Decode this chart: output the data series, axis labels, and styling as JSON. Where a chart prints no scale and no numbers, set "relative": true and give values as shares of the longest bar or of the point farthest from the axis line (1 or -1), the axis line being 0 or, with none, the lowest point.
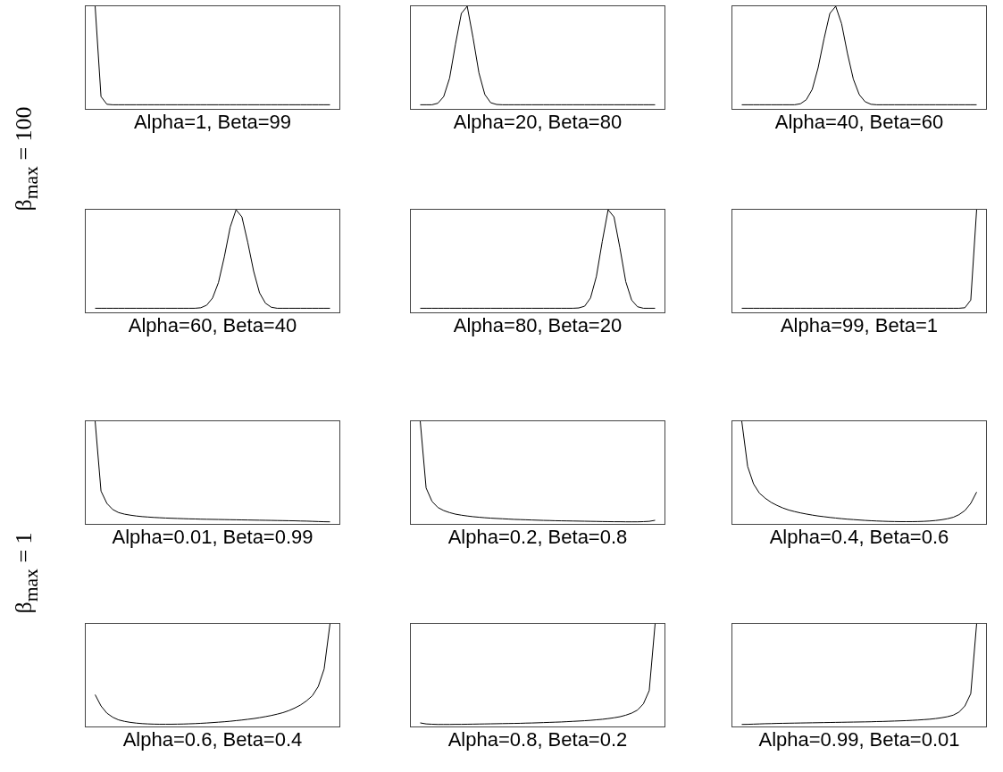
{
  "chart_data": [
    {
      "type": "line",
      "relative": true,
      "color": "#000000",
      "ylabel": "β$_{max}$ = 100",
      "xlabel": "Alpha=1, Beta=99",
      "categories": [
        null,
        null,
        null,
        null,
        null,
        null,
        null,
        null,
        null,
        null,
        null,
        null,
        null,
        null,
        null,
        null,
        null,
        null,
        null,
        null,
        null,
        null,
        null,
        null,
        null,
        null,
        null,
        null,
        null,
        null,
        null,
        null,
        null,
        null,
        null,
        null,
        null,
        null,
        null,
        null,
        null
      ],
      "values": [
        1,
        0.12,
        0.045,
        0.04,
        0.04,
        0.04,
        0.04,
        0.04,
        0.04,
        0.04,
        0.04,
        0.04,
        0.04,
        0.04,
        0.04,
        0.04,
        0.04,
        0.04,
        0.04,
        0.04,
        0.04,
        0.04,
        0.04,
        0.04,
        0.04,
        0.04,
        0.04,
        0.04,
        0.04,
        0.04,
        0.04,
        0.04,
        0.04,
        0.04,
        0.04,
        0.04,
        0.04,
        0.04,
        0.04,
        0.04,
        0.04
      ]
    },
    {
      "type": "line",
      "relative": true,
      "color": "#000000",
      "xlabel": "Alpha=20, Beta=80",
      "categories": [
        null,
        null,
        null,
        null,
        null,
        null,
        null,
        null,
        null,
        null,
        null,
        null,
        null,
        null,
        null,
        null,
        null,
        null,
        null,
        null,
        null,
        null,
        null,
        null,
        null,
        null,
        null,
        null,
        null,
        null,
        null,
        null,
        null,
        null,
        null,
        null,
        null,
        null,
        null,
        null,
        null
      ],
      "values": [
        0.04,
        0.04,
        0.04,
        0.055,
        0.12,
        0.3,
        0.63,
        0.93,
        1,
        0.69,
        0.35,
        0.14,
        0.06,
        0.043,
        0.04,
        0.04,
        0.04,
        0.04,
        0.04,
        0.04,
        0.04,
        0.04,
        0.04,
        0.04,
        0.04,
        0.04,
        0.04,
        0.04,
        0.04,
        0.04,
        0.04,
        0.04,
        0.04,
        0.04,
        0.04,
        0.04,
        0.04,
        0.04,
        0.04,
        0.04,
        0.04
      ]
    },
    {
      "type": "line",
      "relative": true,
      "color": "#000000",
      "xlabel": "Alpha=40, Beta=60",
      "categories": [
        null,
        null,
        null,
        null,
        null,
        null,
        null,
        null,
        null,
        null,
        null,
        null,
        null,
        null,
        null,
        null,
        null,
        null,
        null,
        null,
        null,
        null,
        null,
        null,
        null,
        null,
        null,
        null,
        null,
        null,
        null,
        null,
        null,
        null,
        null,
        null,
        null,
        null,
        null,
        null,
        null
      ],
      "values": [
        0.04,
        0.04,
        0.04,
        0.04,
        0.04,
        0.04,
        0.04,
        0.04,
        0.04,
        0.04,
        0.05,
        0.09,
        0.19,
        0.4,
        0.68,
        0.93,
        1,
        0.83,
        0.54,
        0.29,
        0.14,
        0.07,
        0.045,
        0.04,
        0.04,
        0.04,
        0.04,
        0.04,
        0.04,
        0.04,
        0.04,
        0.04,
        0.04,
        0.04,
        0.04,
        0.04,
        0.04,
        0.04,
        0.04,
        0.04,
        0.04
      ]
    },
    {
      "type": "line",
      "relative": true,
      "color": "#000000",
      "xlabel": "Alpha=60, Beta=40",
      "categories": [
        null,
        null,
        null,
        null,
        null,
        null,
        null,
        null,
        null,
        null,
        null,
        null,
        null,
        null,
        null,
        null,
        null,
        null,
        null,
        null,
        null,
        null,
        null,
        null,
        null,
        null,
        null,
        null,
        null,
        null,
        null,
        null,
        null,
        null,
        null,
        null,
        null,
        null,
        null,
        null,
        null
      ],
      "values": [
        0.04,
        0.04,
        0.04,
        0.04,
        0.04,
        0.04,
        0.04,
        0.04,
        0.04,
        0.04,
        0.04,
        0.04,
        0.04,
        0.04,
        0.04,
        0.04,
        0.04,
        0.04,
        0.045,
        0.07,
        0.14,
        0.29,
        0.54,
        0.83,
        1,
        0.93,
        0.68,
        0.4,
        0.19,
        0.09,
        0.05,
        0.04,
        0.04,
        0.04,
        0.04,
        0.04,
        0.04,
        0.04,
        0.04,
        0.04,
        0.04
      ]
    },
    {
      "type": "line",
      "relative": true,
      "color": "#000000",
      "xlabel": "Alpha=80, Beta=20",
      "categories": [
        null,
        null,
        null,
        null,
        null,
        null,
        null,
        null,
        null,
        null,
        null,
        null,
        null,
        null,
        null,
        null,
        null,
        null,
        null,
        null,
        null,
        null,
        null,
        null,
        null,
        null,
        null,
        null,
        null,
        null,
        null,
        null,
        null,
        null,
        null,
        null,
        null,
        null,
        null,
        null,
        null
      ],
      "values": [
        0.04,
        0.04,
        0.04,
        0.04,
        0.04,
        0.04,
        0.04,
        0.04,
        0.04,
        0.04,
        0.04,
        0.04,
        0.04,
        0.04,
        0.04,
        0.04,
        0.04,
        0.04,
        0.04,
        0.04,
        0.04,
        0.04,
        0.04,
        0.04,
        0.04,
        0.04,
        0.04,
        0.043,
        0.06,
        0.14,
        0.35,
        0.69,
        1,
        0.93,
        0.63,
        0.3,
        0.12,
        0.055,
        0.04,
        0.04,
        0.04
      ]
    },
    {
      "type": "line",
      "relative": true,
      "color": "#000000",
      "xlabel": "Alpha=99, Beta=1",
      "categories": [
        null,
        null,
        null,
        null,
        null,
        null,
        null,
        null,
        null,
        null,
        null,
        null,
        null,
        null,
        null,
        null,
        null,
        null,
        null,
        null,
        null,
        null,
        null,
        null,
        null,
        null,
        null,
        null,
        null,
        null,
        null,
        null,
        null,
        null,
        null,
        null,
        null,
        null,
        null,
        null,
        null
      ],
      "values": [
        0.04,
        0.04,
        0.04,
        0.04,
        0.04,
        0.04,
        0.04,
        0.04,
        0.04,
        0.04,
        0.04,
        0.04,
        0.04,
        0.04,
        0.04,
        0.04,
        0.04,
        0.04,
        0.04,
        0.04,
        0.04,
        0.04,
        0.04,
        0.04,
        0.04,
        0.04,
        0.04,
        0.04,
        0.04,
        0.04,
        0.04,
        0.04,
        0.04,
        0.04,
        0.04,
        0.04,
        0.04,
        0.04,
        0.045,
        0.12,
        1
      ]
    },
    {
      "type": "line",
      "relative": true,
      "color": "#000000",
      "ylabel": "β$_{max}$ = 1",
      "xlabel": "Alpha=0.01, Beta=0.99",
      "categories": [
        null,
        null,
        null,
        null,
        null,
        null,
        null,
        null,
        null,
        null,
        null,
        null,
        null,
        null,
        null,
        null,
        null,
        null,
        null,
        null,
        null,
        null,
        null,
        null,
        null,
        null,
        null,
        null,
        null,
        null,
        null,
        null,
        null,
        null,
        null,
        null,
        null,
        null,
        null,
        null,
        null
      ],
      "values": [
        1,
        0.32,
        0.2,
        0.14,
        0.11,
        0.095,
        0.085,
        0.077,
        0.071,
        0.067,
        0.063,
        0.06,
        0.057,
        0.055,
        0.053,
        0.051,
        0.049,
        0.048,
        0.046,
        0.045,
        0.044,
        0.043,
        0.042,
        0.041,
        0.04,
        0.039,
        0.038,
        0.037,
        0.036,
        0.035,
        0.034,
        0.033,
        0.032,
        0.031,
        0.03,
        0.028,
        0.027,
        0.025,
        0.023,
        0.021,
        0.02
      ]
    },
    {
      "type": "line",
      "relative": true,
      "color": "#000000",
      "xlabel": "Alpha=0.2, Beta=0.8",
      "categories": [
        null,
        null,
        null,
        null,
        null,
        null,
        null,
        null,
        null,
        null,
        null,
        null,
        null,
        null,
        null,
        null,
        null,
        null,
        null,
        null,
        null,
        null,
        null,
        null,
        null,
        null,
        null,
        null,
        null,
        null,
        null,
        null,
        null,
        null,
        null,
        null,
        null,
        null,
        null,
        null,
        null
      ],
      "values": [
        1,
        0.35,
        0.22,
        0.16,
        0.13,
        0.11,
        0.095,
        0.085,
        0.077,
        0.07,
        0.065,
        0.06,
        0.056,
        0.053,
        0.05,
        0.047,
        0.044,
        0.042,
        0.04,
        0.038,
        0.036,
        0.034,
        0.033,
        0.031,
        0.03,
        0.029,
        0.028,
        0.027,
        0.026,
        0.025,
        0.024,
        0.023,
        0.022,
        0.021,
        0.021,
        0.02,
        0.02,
        0.02,
        0.022,
        0.025,
        0.035
      ]
    },
    {
      "type": "line",
      "relative": true,
      "color": "#000000",
      "xlabel": "Alpha=0.4, Beta=0.6",
      "categories": [
        null,
        null,
        null,
        null,
        null,
        null,
        null,
        null,
        null,
        null,
        null,
        null,
        null,
        null,
        null,
        null,
        null,
        null,
        null,
        null,
        null,
        null,
        null,
        null,
        null,
        null,
        null,
        null,
        null,
        null,
        null,
        null,
        null,
        null,
        null,
        null,
        null,
        null,
        null,
        null,
        null
      ],
      "values": [
        1,
        0.56,
        0.39,
        0.3,
        0.25,
        0.21,
        0.18,
        0.155,
        0.135,
        0.12,
        0.107,
        0.096,
        0.086,
        0.077,
        0.07,
        0.063,
        0.057,
        0.051,
        0.046,
        0.042,
        0.038,
        0.034,
        0.031,
        0.028,
        0.026,
        0.024,
        0.023,
        0.022,
        0.022,
        0.022,
        0.023,
        0.025,
        0.028,
        0.033,
        0.04,
        0.05,
        0.064,
        0.09,
        0.13,
        0.2,
        0.31
      ]
    },
    {
      "type": "line",
      "relative": true,
      "color": "#000000",
      "xlabel": "Alpha=0.6, Beta=0.4",
      "categories": [
        null,
        null,
        null,
        null,
        null,
        null,
        null,
        null,
        null,
        null,
        null,
        null,
        null,
        null,
        null,
        null,
        null,
        null,
        null,
        null,
        null,
        null,
        null,
        null,
        null,
        null,
        null,
        null,
        null,
        null,
        null,
        null,
        null,
        null,
        null,
        null,
        null,
        null,
        null,
        null,
        null
      ],
      "values": [
        0.31,
        0.2,
        0.13,
        0.09,
        0.064,
        0.05,
        0.04,
        0.033,
        0.028,
        0.025,
        0.023,
        0.022,
        0.022,
        0.022,
        0.023,
        0.024,
        0.026,
        0.028,
        0.031,
        0.034,
        0.038,
        0.042,
        0.046,
        0.051,
        0.057,
        0.063,
        0.07,
        0.077,
        0.086,
        0.096,
        0.107,
        0.12,
        0.135,
        0.155,
        0.18,
        0.21,
        0.25,
        0.3,
        0.39,
        0.56,
        1
      ]
    },
    {
      "type": "line",
      "relative": true,
      "color": "#000000",
      "xlabel": "Alpha=0.8, Beta=0.2",
      "categories": [
        null,
        null,
        null,
        null,
        null,
        null,
        null,
        null,
        null,
        null,
        null,
        null,
        null,
        null,
        null,
        null,
        null,
        null,
        null,
        null,
        null,
        null,
        null,
        null,
        null,
        null,
        null,
        null,
        null,
        null,
        null,
        null,
        null,
        null,
        null,
        null,
        null,
        null,
        null,
        null,
        null
      ],
      "values": [
        0.035,
        0.025,
        0.022,
        0.02,
        0.02,
        0.02,
        0.021,
        0.021,
        0.022,
        0.023,
        0.024,
        0.025,
        0.026,
        0.027,
        0.028,
        0.029,
        0.03,
        0.031,
        0.033,
        0.034,
        0.036,
        0.038,
        0.04,
        0.042,
        0.044,
        0.047,
        0.05,
        0.053,
        0.056,
        0.06,
        0.065,
        0.07,
        0.077,
        0.085,
        0.095,
        0.11,
        0.13,
        0.16,
        0.22,
        0.35,
        1
      ]
    },
    {
      "type": "line",
      "relative": true,
      "color": "#000000",
      "xlabel": "Alpha=0.99, Beta=0.01",
      "categories": [
        null,
        null,
        null,
        null,
        null,
        null,
        null,
        null,
        null,
        null,
        null,
        null,
        null,
        null,
        null,
        null,
        null,
        null,
        null,
        null,
        null,
        null,
        null,
        null,
        null,
        null,
        null,
        null,
        null,
        null,
        null,
        null,
        null,
        null,
        null,
        null,
        null,
        null,
        null,
        null,
        null
      ],
      "values": [
        0.02,
        0.021,
        0.023,
        0.025,
        0.027,
        0.028,
        0.03,
        0.031,
        0.032,
        0.033,
        0.034,
        0.035,
        0.036,
        0.037,
        0.038,
        0.039,
        0.04,
        0.041,
        0.042,
        0.043,
        0.044,
        0.045,
        0.046,
        0.048,
        0.049,
        0.051,
        0.053,
        0.055,
        0.057,
        0.06,
        0.063,
        0.067,
        0.071,
        0.077,
        0.085,
        0.095,
        0.11,
        0.14,
        0.2,
        0.32,
        1
      ]
    }
  ]
}
